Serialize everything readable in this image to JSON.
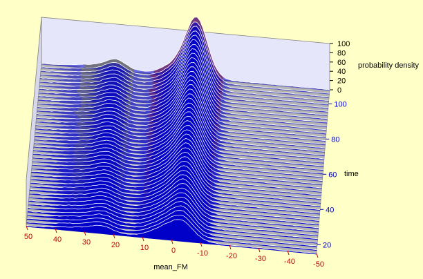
{
  "chart_data": {
    "type": "waterfall",
    "title": "",
    "xlabel": "mean_FM",
    "ylabel": "time",
    "zlabel": "probability density",
    "x_range": [
      50,
      -50
    ],
    "x_ticks": [
      "50",
      "40",
      "30",
      "20",
      "10",
      "0",
      "-10",
      "-20",
      "-30",
      "-40",
      "-50"
    ],
    "time_range": [
      15,
      108
    ],
    "time_ticks": [
      "20",
      "40",
      "60",
      "80",
      "100"
    ],
    "z_range": [
      0,
      100
    ],
    "z_ticks": [
      "0",
      "20",
      "40",
      "60",
      "80",
      "100"
    ],
    "trace_count": 46,
    "peaks": [
      {
        "x": -4,
        "height_start": 20,
        "height_end": 100,
        "width": 3.5
      },
      {
        "x": 0,
        "height_start": 30,
        "height_end": 38,
        "width": 6
      },
      {
        "x": 24,
        "height_start": 10,
        "height_end": 18,
        "width": 3.5
      },
      {
        "x": 30,
        "height_start": 8,
        "height_end": 8,
        "width": 8
      }
    ],
    "colors": {
      "background": "#ffffc8",
      "wall": "#e6e6fa",
      "floor": "#b4b4b4",
      "trace_fill": "#0000c8",
      "trace_line": "#ffffff",
      "surface_low": "#a0a0a0",
      "surface_mid": "#ffff00",
      "surface_high": "#ff6600",
      "x_tick_color": "#c00000",
      "time_tick_color": "#0000c0",
      "z_tick_color": "#000000"
    }
  }
}
